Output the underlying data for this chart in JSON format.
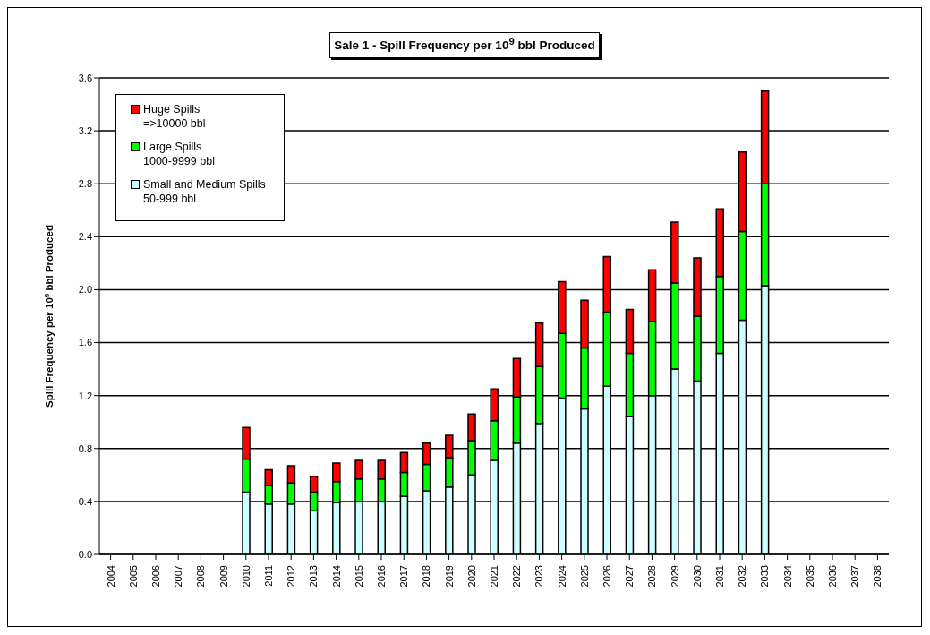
{
  "chart_data": {
    "type": "bar",
    "stacked": true,
    "title": "Sale 1 - Spill Frequency per 10$^{9}$ bbl Produced",
    "ylabel": "Spill Frequency per 10$^{9}$ bbl Produced",
    "categories": [
      "2004",
      "2005",
      "2006",
      "2007",
      "2008",
      "2009",
      "2010",
      "2011",
      "2012",
      "2013",
      "2014",
      "2015",
      "2016",
      "2017",
      "2018",
      "2019",
      "2020",
      "2021",
      "2022",
      "2023",
      "2024",
      "2025",
      "2026",
      "2027",
      "2028",
      "2029",
      "2030",
      "2031",
      "2032",
      "2033",
      "2034",
      "2035",
      "2036",
      "2037",
      "2038"
    ],
    "series": [
      {
        "name": "Small and Medium Spills\n50-999 bbl",
        "color": "#ccffff",
        "values": [
          null,
          null,
          null,
          null,
          null,
          null,
          0.47,
          0.38,
          0.38,
          0.33,
          0.39,
          0.4,
          0.4,
          0.44,
          0.48,
          0.51,
          0.6,
          0.71,
          0.84,
          0.99,
          1.18,
          1.1,
          1.27,
          1.04,
          1.2,
          1.4,
          1.31,
          1.52,
          1.77,
          2.03,
          null,
          null,
          null,
          null,
          null
        ]
      },
      {
        "name": "Large Spills\n1000-9999 bbl",
        "color": "#00ff00",
        "values": [
          null,
          null,
          null,
          null,
          null,
          null,
          0.25,
          0.14,
          0.16,
          0.14,
          0.16,
          0.17,
          0.17,
          0.18,
          0.2,
          0.22,
          0.26,
          0.3,
          0.35,
          0.43,
          0.49,
          0.46,
          0.56,
          0.48,
          0.56,
          0.65,
          0.49,
          0.58,
          0.67,
          0.77,
          null,
          null,
          null,
          null,
          null
        ]
      },
      {
        "name": "Huge Spills\n=>10000 bbl",
        "color": "#ff0000",
        "values": [
          null,
          null,
          null,
          null,
          null,
          null,
          0.24,
          0.12,
          0.13,
          0.12,
          0.14,
          0.14,
          0.14,
          0.15,
          0.16,
          0.17,
          0.2,
          0.24,
          0.29,
          0.33,
          0.39,
          0.36,
          0.42,
          0.33,
          0.39,
          0.46,
          0.44,
          0.51,
          0.6,
          0.7,
          null,
          null,
          null,
          null,
          null
        ]
      }
    ],
    "ylim": [
      0,
      3.6
    ],
    "yticks": [
      {
        "value": 0,
        "label": "0.0"
      },
      0.4,
      0.8,
      1.2,
      1.6,
      {
        "value": 2,
        "label": "2.0"
      },
      2.4,
      2.8,
      3.2,
      3.6
    ],
    "grid": "y",
    "legend": "top left"
  }
}
